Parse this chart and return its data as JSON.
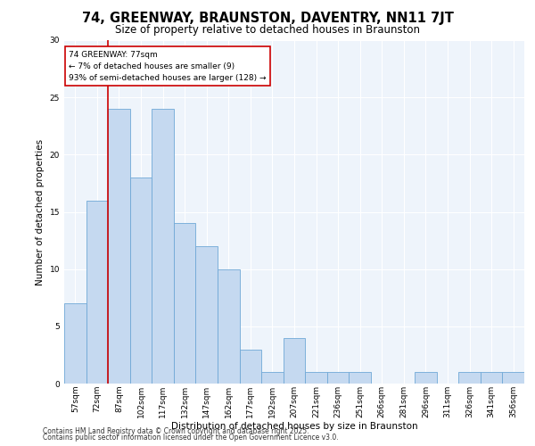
{
  "title": "74, GREENWAY, BRAUNSTON, DAVENTRY, NN11 7JT",
  "subtitle": "Size of property relative to detached houses in Braunston",
  "xlabel": "Distribution of detached houses by size in Braunston",
  "ylabel": "Number of detached properties",
  "categories": [
    "57sqm",
    "72sqm",
    "87sqm",
    "102sqm",
    "117sqm",
    "132sqm",
    "147sqm",
    "162sqm",
    "177sqm",
    "192sqm",
    "207sqm",
    "221sqm",
    "236sqm",
    "251sqm",
    "266sqm",
    "281sqm",
    "296sqm",
    "311sqm",
    "326sqm",
    "341sqm",
    "356sqm"
  ],
  "values": [
    7,
    16,
    24,
    18,
    24,
    14,
    12,
    10,
    3,
    1,
    4,
    1,
    1,
    1,
    0,
    0,
    1,
    0,
    1,
    1,
    1
  ],
  "bar_color": "#c5d9f0",
  "bar_edge_color": "#6fa8d6",
  "annotation_box_color": "#ffffff",
  "annotation_box_edge": "#cc0000",
  "annotation_line_color": "#cc0000",
  "annotation_title": "74 GREENWAY: 77sqm",
  "annotation_line1": "← 7% of detached houses are smaller (9)",
  "annotation_line2": "93% of semi-detached houses are larger (128) →",
  "ylim": [
    0,
    30
  ],
  "yticks": [
    0,
    5,
    10,
    15,
    20,
    25,
    30
  ],
  "background_color": "#eef4fb",
  "footer1": "Contains HM Land Registry data © Crown copyright and database right 2025.",
  "footer2": "Contains public sector information licensed under the Open Government Licence v3.0.",
  "title_fontsize": 10.5,
  "subtitle_fontsize": 8.5,
  "axis_label_fontsize": 7.5,
  "tick_fontsize": 6.5,
  "annotation_fontsize": 6.5,
  "footer_fontsize": 5.5
}
